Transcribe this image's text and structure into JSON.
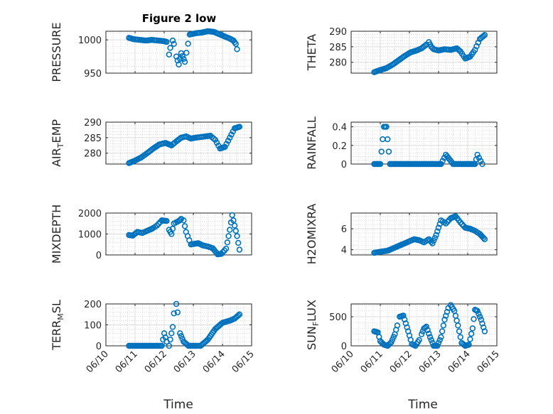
{
  "figure": {
    "title": "Figure 2 low",
    "xlabel": "Time"
  },
  "colors": {
    "marker": "#0072BD",
    "axis": "#262626",
    "grid_major": "#dcdcdc",
    "grid_minor": "#cfcfcf"
  },
  "chart_data": [
    {
      "type": "scatter",
      "id": "pressure",
      "title": "Figure 2 low",
      "ylabel": "PRESSURE",
      "ylim": [
        950,
        1013
      ],
      "yticks": [
        950,
        1000
      ],
      "xlim": [
        "06/10",
        "06/15"
      ],
      "xticks": [
        "06/10",
        "06/11",
        "06/12",
        "06/13",
        "06/14",
        "06/15"
      ],
      "grid": true,
      "minor_grid": true,
      "x": [
        "06/10 19:00",
        "06/10 23:00",
        "06/11 04:00",
        "06/11 09:00",
        "06/11 14:00",
        "06/11 19:00",
        "06/12 00:00",
        "06/12 02:00",
        "06/12 04:00",
        "06/12 05:00",
        "06/12 07:00",
        "06/12 08:00",
        "06/12 10:00",
        "06/12 12:00",
        "06/12 14:00",
        "06/12 17:00",
        "06/12 21:00",
        "06/13 02:00",
        "06/13 07:00",
        "06/13 12:00",
        "06/13 17:00",
        "06/13 22:00",
        "06/14 02:00",
        "06/14 06:00",
        "06/14 09:00",
        "06/14 11:00",
        "06/14 12:00"
      ],
      "y": [
        1003,
        1001,
        1000,
        999,
        1000,
        999,
        998,
        997,
        978,
        988,
        999,
        994,
        975,
        963,
        980,
        967,
        1008,
        1010,
        1011,
        1013,
        1012,
        1008,
        1005,
        1002,
        999,
        994,
        986
      ]
    },
    {
      "type": "scatter",
      "id": "theta",
      "ylabel": "THETA",
      "ylim": [
        276.5,
        290
      ],
      "yticks": [
        280,
        285,
        290
      ],
      "xlim": [
        "06/10",
        "06/15"
      ],
      "xticks": [
        "06/10",
        "06/11",
        "06/12",
        "06/13",
        "06/14",
        "06/15"
      ],
      "grid": true,
      "minor_grid": true,
      "x": [
        "06/10 19:00",
        "06/11 00:00",
        "06/11 05:00",
        "06/11 10:00",
        "06/11 15:00",
        "06/11 20:00",
        "06/12 01:00",
        "06/12 06:00",
        "06/12 10:00",
        "06/12 14:00",
        "06/12 16:00",
        "06/12 18:00",
        "06/12 20:00",
        "06/13 00:00",
        "06/13 05:00",
        "06/13 10:00",
        "06/13 15:00",
        "06/13 18:00",
        "06/13 22:00",
        "06/14 02:00",
        "06/14 06:00",
        "06/14 10:00",
        "06/14 14:00"
      ],
      "y": [
        276.8,
        277.5,
        278.1,
        279.2,
        280.6,
        282.0,
        283.2,
        283.8,
        284.5,
        285.7,
        286.5,
        285.0,
        284.2,
        283.8,
        284.2,
        284.0,
        284.5,
        283.5,
        281.2,
        281.8,
        284.0,
        287.5,
        288.8
      ]
    },
    {
      "type": "scatter",
      "id": "air_temp",
      "ylabel": "AIR_TEMP",
      "ylabel_base": "AIR",
      "ylabel_sub": "T",
      "ylabel_rest": "EMP",
      "ylim": [
        276.5,
        290
      ],
      "yticks": [
        280,
        285,
        290
      ],
      "xlim": [
        "06/10",
        "06/15"
      ],
      "xticks": [
        "06/10",
        "06/11",
        "06/12",
        "06/13",
        "06/14",
        "06/15"
      ],
      "grid": true,
      "minor_grid": true,
      "x": [
        "06/10 19:00",
        "06/11 00:00",
        "06/11 05:00",
        "06/11 10:00",
        "06/11 15:00",
        "06/11 20:00",
        "06/12 01:00",
        "06/12 06:00",
        "06/12 10:00",
        "06/12 14:00",
        "06/12 18:00",
        "06/12 22:00",
        "06/13 02:00",
        "06/13 06:00",
        "06/13 10:00",
        "06/13 14:00",
        "06/13 18:00",
        "06/13 22:00",
        "06/14 02:00",
        "06/14 06:00",
        "06/14 10:00",
        "06/14 14:00"
      ],
      "y": [
        276.8,
        277.6,
        278.6,
        280.0,
        281.5,
        282.8,
        283.3,
        282.5,
        283.8,
        285.0,
        285.4,
        284.7,
        285.0,
        285.2,
        285.4,
        285.6,
        284.3,
        281.5,
        282.0,
        285.0,
        288.0,
        288.5
      ]
    },
    {
      "type": "scatter",
      "id": "rainfall",
      "ylabel": "RAINFALL",
      "ylim": [
        0,
        0.45
      ],
      "yticks": [
        0,
        0.2,
        0.4
      ],
      "xlim": [
        "06/10",
        "06/15"
      ],
      "xticks": [
        "06/10",
        "06/11",
        "06/12",
        "06/13",
        "06/14",
        "06/15"
      ],
      "grid": true,
      "minor_grid": true,
      "x": [
        "06/10 19:00",
        "06/11 00:00",
        "06/11 03:00",
        "06/11 05:00",
        "06/11 08:00",
        "06/11 14:00",
        "06/11 20:00",
        "06/12 02:00",
        "06/12 08:00",
        "06/12 14:00",
        "06/12 20:00",
        "06/13 02:00",
        "06/13 06:00",
        "06/13 12:00",
        "06/13 18:00",
        "06/14 00:00",
        "06/14 06:00",
        "06/14 08:00",
        "06/14 12:00"
      ],
      "y": [
        0,
        0,
        0.4,
        0.4,
        0,
        0,
        0,
        0,
        0,
        0,
        0,
        0,
        0.1,
        0,
        0,
        0,
        0,
        0.1,
        0
      ]
    },
    {
      "type": "scatter",
      "id": "mixdepth",
      "ylabel": "MIXDEPTH",
      "ylim": [
        0,
        2000
      ],
      "yticks": [
        0,
        1000,
        2000
      ],
      "xlim": [
        "06/10",
        "06/15"
      ],
      "xticks": [
        "06/10",
        "06/11",
        "06/12",
        "06/13",
        "06/14",
        "06/15"
      ],
      "grid": true,
      "minor_grid": true,
      "x": [
        "06/10 19:00",
        "06/10 22:00",
        "06/11 02:00",
        "06/11 06:00",
        "06/11 10:00",
        "06/11 14:00",
        "06/11 18:00",
        "06/11 22:00",
        "06/12 02:00",
        "06/12 04:00",
        "06/12 06:00",
        "06/12 08:00",
        "06/12 12:00",
        "06/12 14:00",
        "06/12 16:00",
        "06/12 18:00",
        "06/12 22:00",
        "06/13 04:00",
        "06/13 08:00",
        "06/13 12:00",
        "06/13 16:00",
        "06/13 20:00",
        "06/13 23:00",
        "06/14 03:00",
        "06/14 06:00",
        "06/14 08:00",
        "06/14 09:00",
        "06/14 12:00",
        "06/14 14:00"
      ],
      "y": [
        950,
        920,
        1100,
        1050,
        1150,
        1250,
        1400,
        1650,
        1620,
        1200,
        1000,
        1500,
        1620,
        1720,
        1650,
        1100,
        500,
        560,
        450,
        400,
        320,
        30,
        50,
        300,
        1200,
        1900,
        1650,
        900,
        250
      ]
    },
    {
      "type": "scatter",
      "id": "h2omixra",
      "ylabel": "H2OMIXRA",
      "ylim": [
        3.5,
        7.5
      ],
      "yticks": [
        4,
        6
      ],
      "xlim": [
        "06/10",
        "06/15"
      ],
      "xticks": [
        "06/10",
        "06/11",
        "06/12",
        "06/13",
        "06/14",
        "06/15"
      ],
      "grid": true,
      "minor_grid": true,
      "x": [
        "06/10 19:00",
        "06/11 00:00",
        "06/11 06:00",
        "06/11 12:00",
        "06/11 18:00",
        "06/12 00:00",
        "06/12 04:00",
        "06/12 08:00",
        "06/12 12:00",
        "06/12 16:00",
        "06/12 19:00",
        "06/12 22:00",
        "06/13 02:00",
        "06/13 06:00",
        "06/13 10:00",
        "06/13 14:00",
        "06/13 18:00",
        "06/13 22:00",
        "06/14 02:00",
        "06/14 06:00",
        "06/14 10:00",
        "06/14 14:00"
      ],
      "y": [
        3.7,
        3.8,
        3.9,
        4.2,
        4.5,
        4.8,
        5.0,
        4.9,
        4.7,
        5.0,
        4.6,
        5.4,
        6.8,
        6.5,
        7.0,
        7.2,
        6.6,
        6.1,
        6.0,
        5.8,
        5.5,
        5.0
      ]
    },
    {
      "type": "scatter",
      "id": "terr_msl",
      "ylabel": "TERR_MSL",
      "ylabel_base": "TERR",
      "ylabel_sub": "M",
      "ylabel_rest": "SL",
      "ylim": [
        0,
        200
      ],
      "yticks": [
        0,
        100,
        200
      ],
      "xlim": [
        "06/10",
        "06/15"
      ],
      "xticks": [
        "06/10",
        "06/11",
        "06/12",
        "06/13",
        "06/14",
        "06/15"
      ],
      "grid": true,
      "minor_grid": true,
      "x": [
        "06/10 19:00",
        "06/11 04:00",
        "06/11 14:00",
        "06/11 22:00",
        "06/12 00:00",
        "06/12 02:00",
        "06/12 04:00",
        "06/12 07:00",
        "06/12 08:00",
        "06/12 10:00",
        "06/12 11:00",
        "06/12 13:00",
        "06/12 16:00",
        "06/12 20:00",
        "06/13 02:00",
        "06/13 06:00",
        "06/13 12:00",
        "06/13 18:00",
        "06/14 00:00",
        "06/14 06:00",
        "06/14 10:00",
        "06/14 14:00"
      ],
      "y": [
        0,
        0,
        0,
        0,
        60,
        20,
        0,
        90,
        155,
        200,
        160,
        60,
        20,
        0,
        0,
        0,
        30,
        80,
        110,
        120,
        130,
        150
      ]
    },
    {
      "type": "scatter",
      "id": "sun_flux",
      "ylabel": "SUN_FLUX",
      "ylabel_base": "SUN",
      "ylabel_sub": "F",
      "ylabel_rest": "LUX",
      "ylim": [
        0,
        720
      ],
      "yticks": [
        0,
        500
      ],
      "xlim": [
        "06/10",
        "06/15"
      ],
      "xticks": [
        "06/10",
        "06/11",
        "06/12",
        "06/13",
        "06/14",
        "06/15"
      ],
      "grid": true,
      "minor_grid": true,
      "x": [
        "06/10 19:00",
        "06/10 22:00",
        "06/11 00:00",
        "06/11 03:00",
        "06/11 06:00",
        "06/11 09:00",
        "06/11 12:00",
        "06/11 14:00",
        "06/11 16:00",
        "06/11 19:00",
        "06/11 23:00",
        "06/12 02:00",
        "06/12 05:00",
        "06/12 08:00",
        "06/12 10:00",
        "06/12 12:00",
        "06/12 14:00",
        "06/12 17:00",
        "06/12 20:00",
        "06/12 23:00",
        "06/13 02:00",
        "06/13 05:00",
        "06/13 08:00",
        "06/13 10:00",
        "06/13 13:00",
        "06/13 16:00",
        "06/13 19:00",
        "06/13 22:00",
        "06/14 01:00",
        "06/14 04:00",
        "06/14 06:00",
        "06/14 08:00",
        "06/14 11:00",
        "06/14 14:00"
      ],
      "y": [
        250,
        230,
        80,
        20,
        0,
        60,
        200,
        350,
        500,
        520,
        250,
        30,
        0,
        100,
        200,
        300,
        330,
        150,
        0,
        0,
        150,
        450,
        650,
        700,
        600,
        350,
        50,
        0,
        20,
        300,
        620,
        600,
        450,
        250
      ]
    }
  ]
}
